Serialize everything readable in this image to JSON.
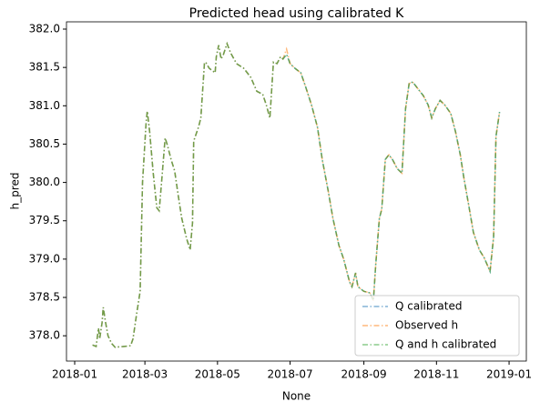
{
  "chart_data": {
    "type": "line",
    "title": "Predicted head using calibrated K",
    "x_label": "None",
    "y_label": "h_pred",
    "x": [
      15,
      18,
      20,
      21,
      23,
      24,
      26,
      28,
      31,
      34,
      41,
      47,
      49,
      52,
      55,
      57,
      60,
      61,
      63,
      66,
      69,
      71,
      73,
      76,
      78,
      81,
      84,
      87,
      90,
      94,
      97,
      99,
      100,
      104,
      106,
      109,
      110,
      113,
      118,
      119,
      121,
      123,
      125,
      128,
      131,
      136,
      142,
      148,
      153,
      158,
      161,
      164,
      167,
      170,
      173,
      175,
      178,
      181,
      185,
      190,
      194,
      199,
      204,
      208,
      213,
      217,
      222,
      226,
      231,
      233,
      236,
      238,
      243,
      248,
      251,
      253,
      256,
      258,
      261,
      264,
      267,
      271,
      275,
      278,
      281,
      284,
      288,
      293,
      297,
      300,
      303,
      307,
      311,
      316,
      320,
      324,
      327,
      331,
      335,
      340,
      344,
      349,
      352,
      354,
      357
    ],
    "series": [
      {
        "name": "Q calibrated",
        "color": "#1f77b4",
        "values": [
          377.88,
          377.86,
          378.1,
          377.96,
          378.17,
          378.37,
          378.17,
          378.0,
          377.9,
          377.85,
          377.86,
          377.87,
          377.96,
          378.28,
          378.58,
          380.0,
          380.78,
          380.93,
          380.66,
          380.12,
          379.67,
          379.63,
          380.0,
          380.58,
          380.48,
          380.3,
          380.15,
          379.83,
          379.53,
          379.27,
          379.12,
          379.47,
          380.54,
          380.72,
          380.84,
          381.55,
          381.57,
          381.49,
          381.43,
          381.64,
          381.79,
          381.61,
          381.67,
          381.81,
          381.69,
          381.55,
          381.49,
          381.37,
          381.19,
          381.15,
          381.01,
          380.84,
          381.57,
          381.55,
          381.64,
          381.61,
          381.67,
          381.55,
          381.49,
          381.43,
          381.25,
          381.01,
          380.72,
          380.3,
          379.89,
          379.53,
          379.18,
          379.0,
          378.7,
          378.64,
          378.82,
          378.64,
          378.58,
          378.56,
          378.46,
          378.94,
          379.53,
          379.65,
          380.3,
          380.36,
          380.3,
          380.18,
          380.12,
          380.96,
          381.29,
          381.31,
          381.23,
          381.13,
          381.01,
          380.84,
          380.96,
          381.07,
          381.01,
          380.9,
          380.66,
          380.36,
          380.06,
          379.71,
          379.35,
          379.12,
          379.02,
          378.84,
          379.29,
          380.6,
          380.92
        ]
      },
      {
        "name": "Observed h",
        "color": "#ff7f0e",
        "values": [
          377.88,
          377.86,
          378.1,
          377.96,
          378.17,
          378.37,
          378.17,
          378.0,
          377.9,
          377.85,
          377.86,
          377.87,
          377.96,
          378.28,
          378.58,
          380.0,
          380.78,
          380.93,
          380.66,
          380.12,
          379.67,
          379.63,
          380.0,
          380.58,
          380.48,
          380.3,
          380.15,
          379.83,
          379.53,
          379.27,
          379.12,
          379.47,
          380.54,
          380.72,
          380.84,
          381.55,
          381.57,
          381.49,
          381.43,
          381.64,
          381.79,
          381.61,
          381.67,
          381.81,
          381.69,
          381.55,
          381.49,
          381.37,
          381.19,
          381.15,
          381.01,
          380.84,
          381.57,
          381.55,
          381.64,
          381.61,
          381.74,
          381.55,
          381.49,
          381.43,
          381.25,
          381.01,
          380.72,
          380.3,
          379.89,
          379.53,
          379.18,
          379.0,
          378.7,
          378.64,
          378.82,
          378.64,
          378.58,
          378.56,
          378.46,
          378.94,
          379.53,
          379.65,
          380.3,
          380.36,
          380.3,
          380.18,
          380.12,
          380.96,
          381.29,
          381.31,
          381.23,
          381.13,
          381.01,
          380.84,
          380.96,
          381.07,
          381.01,
          380.9,
          380.66,
          380.36,
          380.06,
          379.71,
          379.35,
          379.12,
          379.02,
          378.84,
          379.29,
          380.6,
          380.92
        ]
      },
      {
        "name": "Q and h calibrated",
        "color": "#2ca02c",
        "values": [
          377.88,
          377.86,
          378.1,
          377.96,
          378.17,
          378.37,
          378.17,
          378.0,
          377.9,
          377.85,
          377.86,
          377.87,
          377.96,
          378.28,
          378.58,
          380.0,
          380.78,
          380.93,
          380.66,
          380.12,
          379.67,
          379.63,
          380.0,
          380.58,
          380.48,
          380.3,
          380.15,
          379.83,
          379.53,
          379.27,
          379.12,
          379.47,
          380.54,
          380.72,
          380.84,
          381.55,
          381.57,
          381.49,
          381.43,
          381.64,
          381.79,
          381.61,
          381.67,
          381.81,
          381.69,
          381.55,
          381.49,
          381.37,
          381.19,
          381.15,
          381.01,
          380.84,
          381.57,
          381.55,
          381.64,
          381.61,
          381.67,
          381.55,
          381.49,
          381.43,
          381.25,
          381.01,
          380.72,
          380.3,
          379.89,
          379.53,
          379.18,
          379.0,
          378.7,
          378.64,
          378.82,
          378.64,
          378.58,
          378.56,
          378.46,
          378.94,
          379.53,
          379.65,
          380.3,
          380.36,
          380.3,
          380.18,
          380.12,
          380.96,
          381.29,
          381.31,
          381.23,
          381.13,
          381.01,
          380.84,
          380.96,
          381.07,
          381.01,
          380.9,
          380.66,
          380.36,
          380.06,
          379.71,
          379.35,
          379.12,
          379.02,
          378.84,
          379.29,
          380.6,
          380.92
        ]
      }
    ],
    "xlim": [
      -6.9,
      379.5
    ],
    "xticks": [
      {
        "value": 0,
        "label": "2018-01"
      },
      {
        "value": 59,
        "label": "2018-03"
      },
      {
        "value": 120,
        "label": "2018-05"
      },
      {
        "value": 181,
        "label": "2018-07"
      },
      {
        "value": 243,
        "label": "2018-09"
      },
      {
        "value": 304,
        "label": "2018-11"
      },
      {
        "value": 365,
        "label": "2019-01"
      }
    ],
    "ylim": [
      377.67,
      382.095
    ],
    "yticks": [
      {
        "value": 378,
        "label": "378.0"
      },
      {
        "value": 378.5,
        "label": "378.5"
      },
      {
        "value": 379,
        "label": "379.0"
      },
      {
        "value": 379.5,
        "label": "379.5"
      },
      {
        "value": 380,
        "label": "380.0"
      },
      {
        "value": 380.5,
        "label": "380.5"
      },
      {
        "value": 381,
        "label": "381.0"
      },
      {
        "value": 381.5,
        "label": "381.5"
      },
      {
        "value": 382,
        "label": "382.0"
      }
    ],
    "legend": "lower right"
  }
}
